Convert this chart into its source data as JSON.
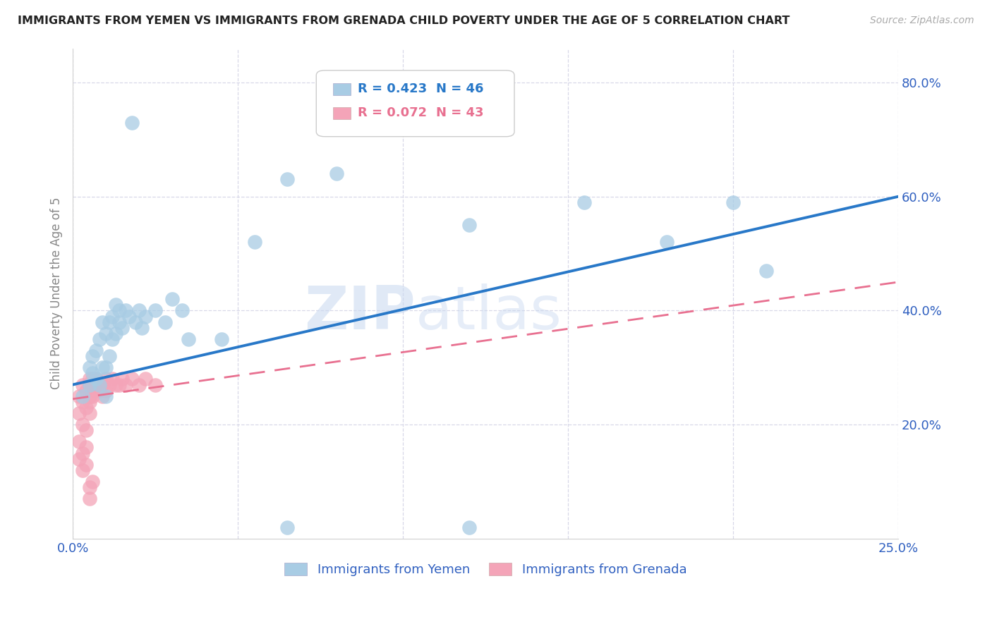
{
  "title": "IMMIGRANTS FROM YEMEN VS IMMIGRANTS FROM GRENADA CHILD POVERTY UNDER THE AGE OF 5 CORRELATION CHART",
  "source": "Source: ZipAtlas.com",
  "ylabel": "Child Poverty Under the Age of 5",
  "ytick_labels": [
    "20.0%",
    "40.0%",
    "60.0%",
    "80.0%"
  ],
  "ytick_values": [
    0.2,
    0.4,
    0.6,
    0.8
  ],
  "xlim": [
    0.0,
    0.25
  ],
  "ylim": [
    0.0,
    0.86
  ],
  "legend_label_blue": "Immigrants from Yemen",
  "legend_label_pink": "Immigrants from Grenada",
  "blue_color": "#a8cce4",
  "pink_color": "#f4a4b8",
  "blue_line_color": "#2878c8",
  "pink_line_color": "#e87090",
  "watermark_zip": "ZIP",
  "watermark_atlas": "atlas",
  "background_color": "#ffffff",
  "grid_color": "#d8d8e8",
  "axis_label_color": "#3060c0",
  "tick_label_color": "#3060c0",
  "yemen_x": [
    0.003,
    0.005,
    0.005,
    0.006,
    0.006,
    0.007,
    0.007,
    0.008,
    0.008,
    0.009,
    0.009,
    0.01,
    0.01,
    0.01,
    0.011,
    0.011,
    0.012,
    0.012,
    0.013,
    0.013,
    0.014,
    0.014,
    0.015,
    0.016,
    0.017,
    0.018,
    0.019,
    0.02,
    0.021,
    0.022,
    0.025,
    0.028,
    0.03,
    0.033,
    0.035,
    0.045,
    0.055,
    0.065,
    0.08,
    0.12,
    0.155,
    0.18,
    0.2,
    0.21,
    0.065,
    0.12
  ],
  "yemen_y": [
    0.25,
    0.27,
    0.3,
    0.29,
    0.32,
    0.28,
    0.33,
    0.27,
    0.35,
    0.3,
    0.38,
    0.25,
    0.3,
    0.36,
    0.32,
    0.38,
    0.35,
    0.39,
    0.36,
    0.41,
    0.38,
    0.4,
    0.37,
    0.4,
    0.39,
    0.73,
    0.38,
    0.4,
    0.37,
    0.39,
    0.4,
    0.38,
    0.42,
    0.4,
    0.35,
    0.35,
    0.52,
    0.63,
    0.64,
    0.55,
    0.59,
    0.52,
    0.59,
    0.47,
    0.02,
    0.02
  ],
  "grenada_x": [
    0.002,
    0.002,
    0.003,
    0.003,
    0.003,
    0.004,
    0.004,
    0.004,
    0.005,
    0.005,
    0.005,
    0.005,
    0.005,
    0.006,
    0.006,
    0.006,
    0.007,
    0.007,
    0.008,
    0.008,
    0.009,
    0.009,
    0.01,
    0.01,
    0.011,
    0.012,
    0.013,
    0.014,
    0.015,
    0.016,
    0.018,
    0.02,
    0.022,
    0.025,
    0.002,
    0.002,
    0.003,
    0.003,
    0.004,
    0.004,
    0.005,
    0.005,
    0.006
  ],
  "grenada_y": [
    0.25,
    0.22,
    0.27,
    0.24,
    0.2,
    0.26,
    0.23,
    0.19,
    0.28,
    0.25,
    0.22,
    0.27,
    0.24,
    0.28,
    0.25,
    0.27,
    0.26,
    0.28,
    0.27,
    0.26,
    0.25,
    0.27,
    0.26,
    0.28,
    0.27,
    0.28,
    0.27,
    0.27,
    0.28,
    0.27,
    0.28,
    0.27,
    0.28,
    0.27,
    0.17,
    0.14,
    0.15,
    0.12,
    0.16,
    0.13,
    0.07,
    0.09,
    0.1
  ],
  "blue_line_x0": 0.0,
  "blue_line_y0": 0.27,
  "blue_line_x1": 0.25,
  "blue_line_y1": 0.6,
  "pink_line_x0": 0.0,
  "pink_line_y0": 0.245,
  "pink_line_x1": 0.25,
  "pink_line_y1": 0.45
}
